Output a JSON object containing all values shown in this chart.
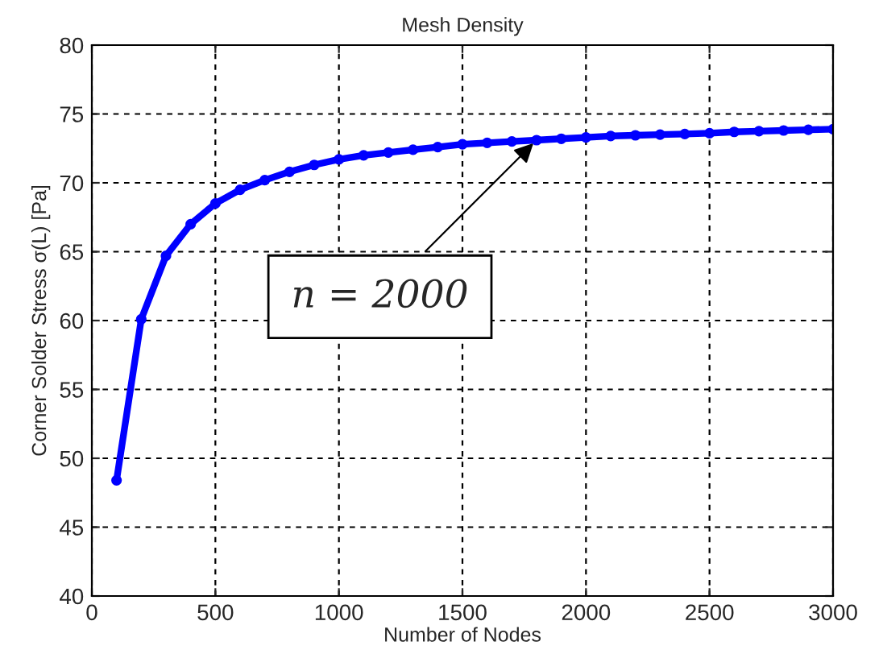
{
  "chart_data": {
    "type": "line",
    "title": "Mesh Density",
    "xlabel": "Number of Nodes",
    "ylabel": "Corner Solder Stress σ(L) [Pa]",
    "x": [
      100,
      200,
      300,
      400,
      500,
      600,
      700,
      800,
      900,
      1000,
      1100,
      1200,
      1300,
      1400,
      1500,
      1600,
      1700,
      1800,
      1900,
      2000,
      2100,
      2200,
      2300,
      2400,
      2500,
      2600,
      2700,
      2800,
      2900,
      3000
    ],
    "series": [
      {
        "color": "#0000ff",
        "values": [
          48.4,
          60.1,
          64.7,
          67.0,
          68.5,
          69.5,
          70.2,
          70.8,
          71.3,
          71.7,
          72.0,
          72.2,
          72.4,
          72.6,
          72.8,
          72.9,
          73.0,
          73.1,
          73.2,
          73.3,
          73.4,
          73.45,
          73.5,
          73.55,
          73.6,
          73.7,
          73.75,
          73.8,
          73.85,
          73.9
        ]
      }
    ],
    "xlim": [
      0,
      3000
    ],
    "xticks": [
      0,
      500,
      1000,
      1500,
      2000,
      2500,
      3000
    ],
    "ylim": [
      40,
      80
    ],
    "yticks": [
      40,
      45,
      50,
      55,
      60,
      65,
      70,
      75,
      80
    ],
    "grid": true,
    "marker": "circle",
    "line_style": "solid",
    "annotations": [
      {
        "text": "n = 2000",
        "x": 1800,
        "y": 73.1
      }
    ]
  }
}
